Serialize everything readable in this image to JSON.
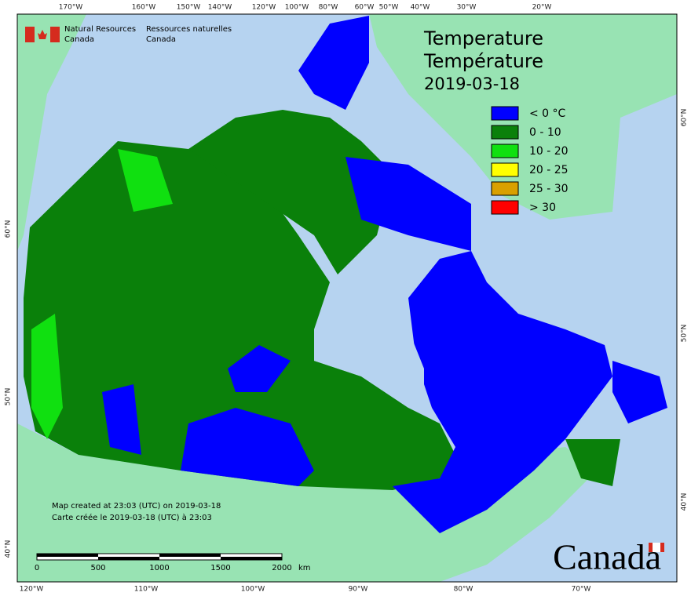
{
  "header": {
    "org_en": [
      "Natural Resources",
      "Canada"
    ],
    "org_fr": [
      "Ressources naturelles",
      "Canada"
    ]
  },
  "title": [
    "Temperature",
    "Température",
    "2019-03-18"
  ],
  "legend": [
    {
      "label": "< 0 °C",
      "color": "#0000ff"
    },
    {
      "label": "0 - 10",
      "color": "#0a800a"
    },
    {
      "label": "10 - 20",
      "color": "#10e010"
    },
    {
      "label": "20 - 25",
      "color": "#ffff00"
    },
    {
      "label": "25 - 30",
      "color": "#d9a000"
    },
    {
      "label": "> 30",
      "color": "#ff0000"
    }
  ],
  "graticule": {
    "top": [
      "170°W",
      "160°W",
      "150°W",
      "140°W",
      "120°W",
      "100°W",
      "80°W",
      "60°W",
      "50°W",
      "40°W",
      "30°W",
      "20°W"
    ],
    "bottom": [
      "120°W",
      "110°W",
      "100°W",
      "90°W",
      "80°W",
      "70°W"
    ],
    "left": [
      "60°N",
      "50°N",
      "40°N"
    ],
    "right": [
      "60°N",
      "50°N",
      "40°N"
    ]
  },
  "notes": [
    "Map created at 23:03 (UTC) on 2019-03-18",
    "Carte créée le 2019-03-18 (UTC) à 23:03"
  ],
  "scale_bar": {
    "ticks": [
      "0",
      "500",
      "1000",
      "1500",
      "2000"
    ],
    "unit": "km"
  },
  "wordmark": "Canada"
}
